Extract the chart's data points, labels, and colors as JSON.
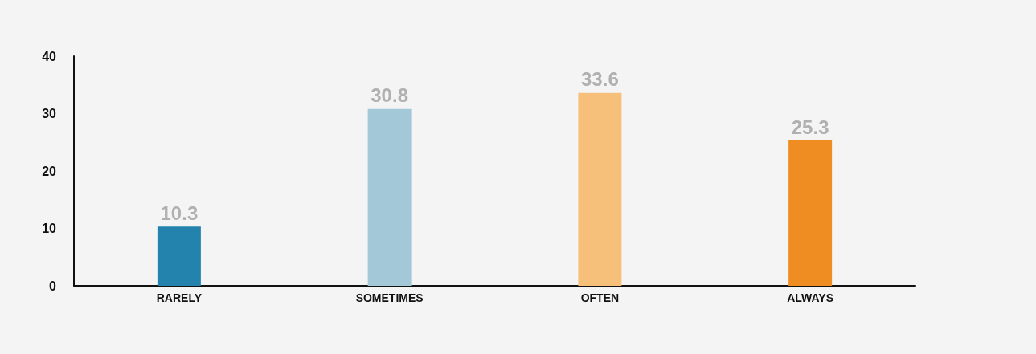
{
  "chart_data": {
    "type": "bar",
    "categories": [
      "RARELY",
      "SOMETIMES",
      "OFTEN",
      "ALWAYS"
    ],
    "values": [
      10.3,
      30.8,
      33.6,
      25.3
    ],
    "colors": [
      "#2383ad",
      "#a3c9d9",
      "#f7c07a",
      "#f08d22"
    ],
    "ylim": [
      0,
      40
    ],
    "yticks": [
      0,
      10,
      20,
      30,
      40
    ],
    "grid": false,
    "data_labels": true
  }
}
